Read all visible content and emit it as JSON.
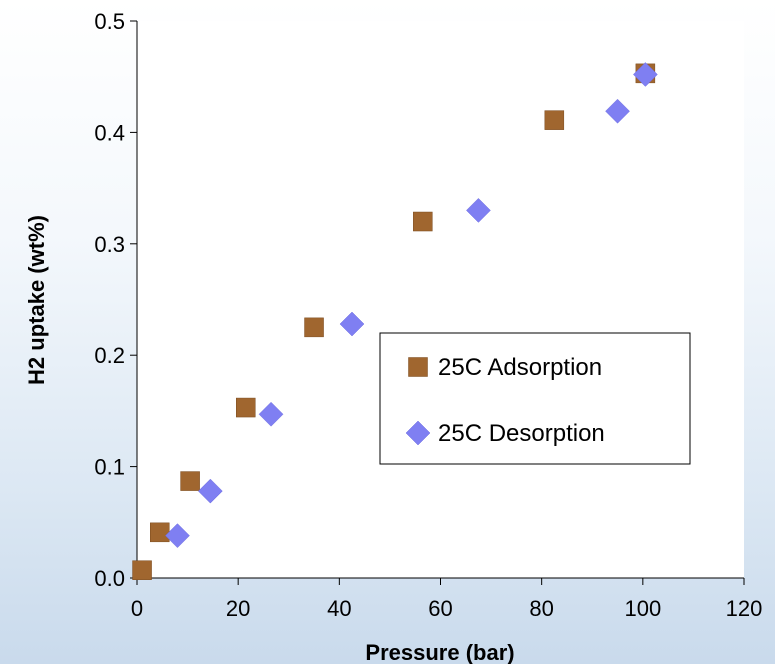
{
  "chart_data": {
    "type": "scatter",
    "title": "",
    "xlabel": "Pressure (bar)",
    "ylabel": "H2 uptake (wt%)",
    "xlim": [
      0,
      120
    ],
    "ylim": [
      0.0,
      0.5
    ],
    "xticks": [
      0,
      20,
      40,
      60,
      80,
      100,
      120
    ],
    "yticks": [
      "0.0",
      "0.1",
      "0.2",
      "0.3",
      "0.4",
      "0.5"
    ],
    "grid": false,
    "legend_position": "center-right",
    "series": [
      {
        "name": "25C Adsorption",
        "marker": "square",
        "color": "#a0662f",
        "x": [
          1,
          4.5,
          10.5,
          21.5,
          35,
          56.5,
          82.5,
          100.5
        ],
        "y": [
          0.007,
          0.041,
          0.087,
          0.153,
          0.225,
          0.32,
          0.411,
          0.453
        ]
      },
      {
        "name": "25C Desorption",
        "marker": "diamond",
        "color": "#7f7ff2",
        "x": [
          8,
          14.5,
          26.5,
          42.5,
          67.5,
          95,
          100.5
        ],
        "y": [
          0.038,
          0.078,
          0.147,
          0.228,
          0.33,
          0.419,
          0.452
        ]
      }
    ]
  }
}
